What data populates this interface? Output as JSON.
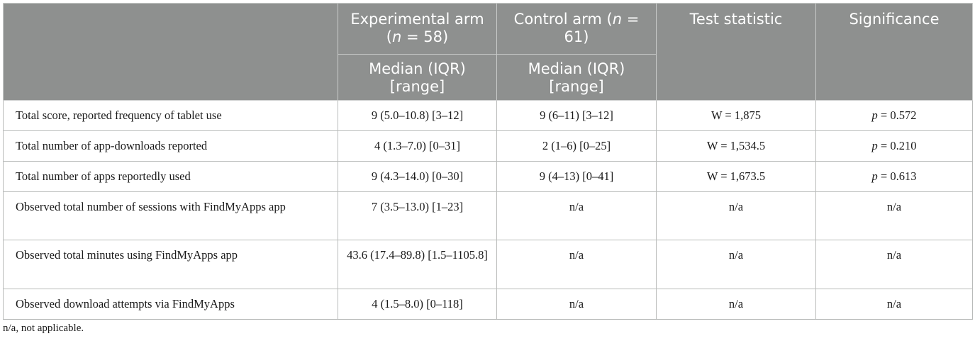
{
  "header": {
    "experimental_arm_label": "Experimental arm (",
    "experimental_n_symbol": "n",
    "experimental_n_value": " = 58)",
    "control_arm_label": "Control arm (",
    "control_n_symbol": "n",
    "control_n_value": " = 61)",
    "test_statistic": "Test statistic",
    "significance": "Significance",
    "experimental_sub": "Median (IQR) [range]",
    "control_sub": "Median (IQR) [range]"
  },
  "rows": [
    {
      "label": "Total score, reported frequency of tablet use",
      "experimental": "9 (5.0–10.8) [3–12]",
      "control": "9 (6–11) [3–12]",
      "statistic": "W = 1,875",
      "p_symbol": "p",
      "significance": " = 0.572"
    },
    {
      "label": "Total number of app-downloads reported",
      "experimental": "4 (1.3–7.0) [0–31]",
      "control": "2 (1–6) [0–25]",
      "statistic": "W = 1,534.5",
      "p_symbol": "p",
      "significance": " = 0.210"
    },
    {
      "label": "Total number of apps reportedly used",
      "experimental": "9 (4.3–14.0) [0–30]",
      "control": "9 (4–13) [0–41]",
      "statistic": "W = 1,673.5",
      "p_symbol": "p",
      "significance": " = 0.613"
    },
    {
      "label": "Observed total number of sessions with FindMyApps app",
      "experimental": "7 (3.5–13.0) [1–23]",
      "control": "n/a",
      "statistic": "n/a",
      "significance": "n/a"
    },
    {
      "label": "Observed total minutes using FindMyApps app",
      "experimental": "43.6 (17.4–89.8) [1.5–1105.8]",
      "control": "n/a",
      "statistic": "n/a",
      "significance": "n/a"
    },
    {
      "label": "Observed download attempts via FindMyApps",
      "experimental": "4 (1.5–8.0) [0–118]",
      "control": "n/a",
      "statistic": "n/a",
      "significance": "n/a"
    }
  ],
  "footnote": "n/a, not applicable."
}
